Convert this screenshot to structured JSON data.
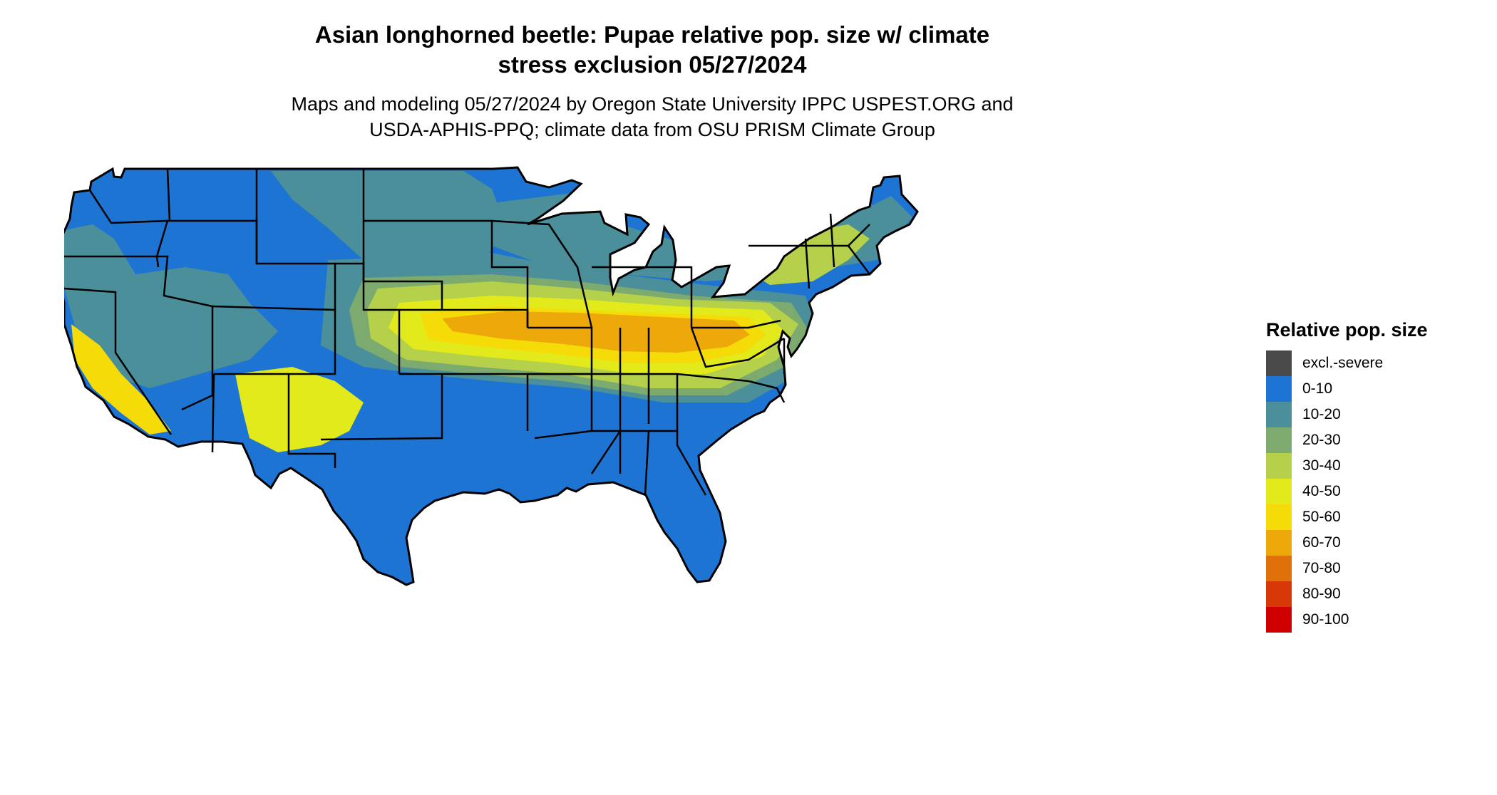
{
  "title": {
    "line1": "Asian longhorned beetle: Pupae relative pop. size w/ climate",
    "line2": "stress exclusion 05/27/2024"
  },
  "subtitle": {
    "line1": "Maps and modeling 05/27/2024 by Oregon State University IPPC USPEST.ORG and",
    "line2": "USDA-APHIS-PPQ; climate data from OSU PRISM Climate Group"
  },
  "legend": {
    "title": "Relative pop. size",
    "items": [
      {
        "label": "excl.-severe",
        "color": "#4a4a4a"
      },
      {
        "label": "0-10",
        "color": "#1e74d2"
      },
      {
        "label": "10-20",
        "color": "#4a8f9a"
      },
      {
        "label": "20-30",
        "color": "#7daa6e"
      },
      {
        "label": "30-40",
        "color": "#b5d04a"
      },
      {
        "label": "40-50",
        "color": "#e2ea1c"
      },
      {
        "label": "50-60",
        "color": "#f5dc08"
      },
      {
        "label": "60-70",
        "color": "#eda80a"
      },
      {
        "label": "70-80",
        "color": "#e0700a"
      },
      {
        "label": "80-90",
        "color": "#d83808"
      },
      {
        "label": "90-100",
        "color": "#d00000"
      }
    ]
  },
  "map": {
    "region": "Contiguous United States",
    "base_color": "#1e74d2",
    "border_color": "#000000"
  }
}
